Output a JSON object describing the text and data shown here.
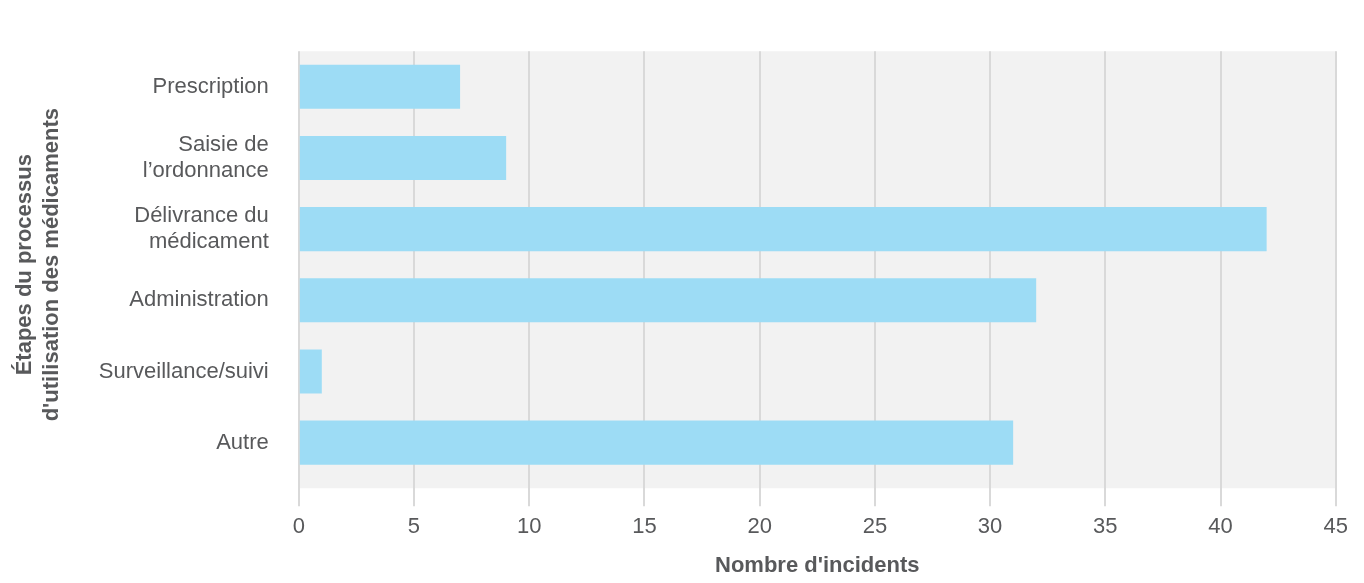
{
  "chart_data": {
    "type": "bar",
    "orientation": "horizontal",
    "xlabel": "Nombre d'incidents",
    "ylabel": "Étapes du processus d'utilisation des médicaments",
    "categories": [
      "Prescription",
      "Saisie de l’ordonnance",
      "Délivrance du médicament",
      "Administration",
      "Surveillance/suivi",
      "Autre"
    ],
    "values": [
      7,
      9,
      42,
      32,
      1,
      31
    ],
    "color": "#9ddcf5",
    "xlim": [
      0,
      45
    ],
    "xticks": [
      0,
      5,
      10,
      15,
      20,
      25,
      30,
      35,
      40,
      45
    ],
    "grid": "x"
  }
}
